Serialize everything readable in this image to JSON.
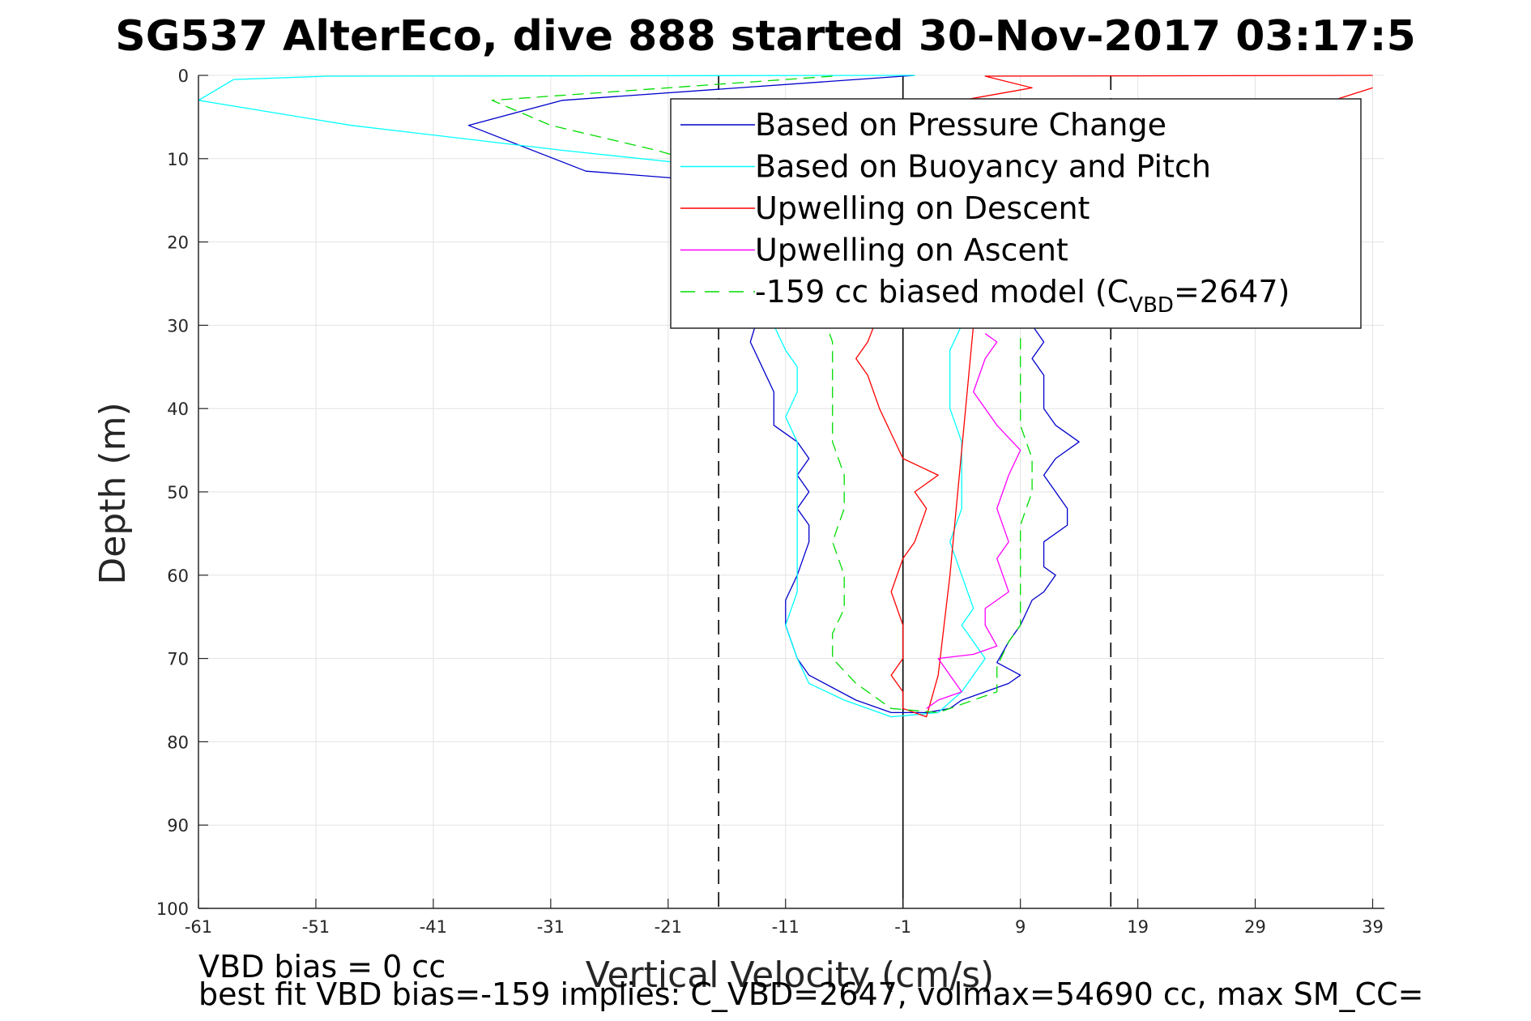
{
  "chart_data": {
    "type": "line",
    "title": "SG537 AlterEco, dive 888 started 30-Nov-2017 03:17:5",
    "xlabel": "Vertical Velocity (cm/s)",
    "ylabel": "Depth (m)",
    "xlim": [
      -61,
      40
    ],
    "ylim": [
      0,
      100
    ],
    "y_reversed": true,
    "grid": true,
    "xticks": [
      -61,
      -51,
      -41,
      -31,
      -21,
      -11,
      -1,
      9,
      19,
      29,
      39
    ],
    "yticks": [
      0,
      10,
      20,
      30,
      40,
      50,
      60,
      70,
      80,
      90,
      100
    ],
    "legend_position": "top-right",
    "legend": [
      {
        "label": "Based on Pressure Change",
        "color": "#0000cc",
        "dash": "solid"
      },
      {
        "label": "Based on Buoyancy and Pitch",
        "color": "#00ffff",
        "dash": "solid"
      },
      {
        "label": "Upwelling on Descent",
        "color": "#ff0000",
        "dash": "solid"
      },
      {
        "label": "Upwelling on Ascent",
        "color": "#ff00ff",
        "dash": "solid"
      },
      {
        "label_main": "-159 cc biased model (C",
        "label_sub": "VBD",
        "label_end": "=2647)",
        "color": "#00dd00",
        "dash": "dashed"
      }
    ],
    "reference_lines": [
      {
        "x": -16.7,
        "style": "dashed",
        "color": "#000000"
      },
      {
        "x": -1,
        "style": "solid",
        "color": "#000000"
      },
      {
        "x": 16.7,
        "style": "dashed",
        "color": "#000000"
      }
    ],
    "series": [
      {
        "color": "#0000cc",
        "dash": "solid",
        "points": [
          [
            0,
            0
          ],
          [
            -30,
            3
          ],
          [
            -38,
            6
          ],
          [
            -28,
            11.5
          ],
          [
            -19,
            12.5
          ],
          [
            -10,
            13.5
          ],
          [
            -14,
            32
          ],
          [
            -13,
            35
          ],
          [
            -12,
            38
          ],
          [
            -12,
            42
          ],
          [
            -10,
            44
          ],
          [
            -9,
            46
          ],
          [
            -10,
            48
          ],
          [
            -9,
            50
          ],
          [
            -10,
            52
          ],
          [
            -9,
            54
          ],
          [
            -9,
            56
          ],
          [
            -10,
            60
          ],
          [
            -11,
            63
          ],
          [
            -11,
            66
          ],
          [
            -10,
            70
          ],
          [
            -9,
            72
          ],
          [
            -5,
            75
          ],
          [
            -2,
            76.5
          ],
          [
            1,
            76.5
          ],
          [
            3,
            76
          ],
          [
            4,
            75
          ],
          [
            6,
            74
          ],
          [
            8,
            73
          ],
          [
            9,
            72
          ],
          [
            7,
            70.5
          ],
          [
            8,
            68
          ],
          [
            9,
            66
          ],
          [
            10,
            63
          ],
          [
            11,
            62
          ],
          [
            12,
            60
          ],
          [
            11,
            59
          ],
          [
            11,
            56
          ],
          [
            13,
            54
          ],
          [
            13,
            52
          ],
          [
            12,
            50
          ],
          [
            11,
            48
          ],
          [
            12,
            46
          ],
          [
            14,
            44
          ],
          [
            12,
            42
          ],
          [
            11,
            40
          ],
          [
            11,
            36
          ],
          [
            10,
            34
          ],
          [
            11,
            32
          ],
          [
            10,
            30
          ]
        ]
      },
      {
        "color": "#00ffff",
        "dash": "solid",
        "points": [
          [
            0,
            0
          ],
          [
            -50,
            0.1
          ],
          [
            -58,
            0.5
          ],
          [
            -61,
            3
          ],
          [
            -48,
            6
          ],
          [
            -30,
            9
          ],
          [
            -20,
            10.5
          ],
          [
            -12,
            11.5
          ],
          [
            -12,
            30
          ],
          [
            -11,
            33
          ],
          [
            -10,
            35
          ],
          [
            -10,
            38
          ],
          [
            -11,
            41
          ],
          [
            -10,
            44
          ],
          [
            -10,
            46
          ],
          [
            -10,
            50
          ],
          [
            -10,
            54
          ],
          [
            -10,
            58
          ],
          [
            -10,
            62
          ],
          [
            -11,
            66
          ],
          [
            -10,
            70
          ],
          [
            -9,
            73
          ],
          [
            -6,
            75
          ],
          [
            -2,
            77
          ],
          [
            2,
            76.5
          ],
          [
            4,
            74
          ],
          [
            5,
            72
          ],
          [
            6,
            70
          ],
          [
            5,
            68
          ],
          [
            4,
            66
          ],
          [
            5,
            64
          ],
          [
            4,
            60
          ],
          [
            3,
            56
          ],
          [
            4,
            52
          ],
          [
            4,
            48
          ],
          [
            4,
            44
          ],
          [
            3,
            40
          ],
          [
            3,
            36
          ],
          [
            3,
            33
          ],
          [
            4,
            30
          ]
        ]
      },
      {
        "color": "#ff0000",
        "dash": "solid",
        "points": [
          [
            39,
            0
          ],
          [
            6,
            0.1
          ],
          [
            10,
            1.5
          ],
          [
            4,
            3
          ],
          [
            -4,
            32
          ],
          [
            -5,
            34
          ],
          [
            -4,
            36
          ],
          [
            -3,
            40
          ],
          [
            -2,
            43
          ],
          [
            -1,
            46
          ],
          [
            2,
            48
          ],
          [
            0,
            50
          ],
          [
            1,
            52
          ],
          [
            0,
            56
          ],
          [
            -1,
            58
          ],
          [
            -2,
            62
          ],
          [
            -1,
            66
          ],
          [
            -1,
            68
          ],
          [
            -1,
            70
          ],
          [
            -2,
            72
          ],
          [
            -1,
            74
          ],
          [
            -1,
            76
          ],
          [
            1,
            77
          ],
          [
            2,
            72
          ],
          [
            3,
            60
          ],
          [
            4,
            45
          ],
          [
            5,
            30
          ],
          [
            4,
            20
          ],
          [
            20,
            10
          ],
          [
            39,
            1.5
          ]
        ]
      },
      {
        "color": "#ff00ff",
        "dash": "solid",
        "points": [
          [
            1,
            76
          ],
          [
            2,
            75
          ],
          [
            4,
            74
          ],
          [
            3,
            72
          ],
          [
            2,
            70
          ],
          [
            5,
            69.5
          ],
          [
            7,
            68.5
          ],
          [
            6,
            66
          ],
          [
            6,
            64
          ],
          [
            8,
            62
          ],
          [
            7,
            58
          ],
          [
            8,
            56
          ],
          [
            7,
            52
          ],
          [
            8,
            48
          ],
          [
            9,
            45
          ],
          [
            7,
            42
          ],
          [
            6,
            40
          ],
          [
            5,
            38
          ],
          [
            6,
            34
          ],
          [
            7,
            32
          ],
          [
            6,
            31
          ]
        ]
      },
      {
        "color": "#00dd00",
        "dash": "dashed",
        "points": [
          [
            -7,
            0.1
          ],
          [
            -36,
            3
          ],
          [
            -31,
            6
          ],
          [
            -22,
            9
          ],
          [
            -17,
            11
          ],
          [
            -12,
            12
          ],
          [
            -7,
            32
          ],
          [
            -7,
            36
          ],
          [
            -7,
            40
          ],
          [
            -7,
            44
          ],
          [
            -6,
            48
          ],
          [
            -6,
            52
          ],
          [
            -7,
            56
          ],
          [
            -6,
            60
          ],
          [
            -6,
            64
          ],
          [
            -7,
            67
          ],
          [
            -7,
            70
          ],
          [
            -5,
            73
          ],
          [
            -2,
            76
          ],
          [
            2,
            76.5
          ],
          [
            5,
            75
          ],
          [
            7,
            74
          ],
          [
            7,
            71
          ],
          [
            8,
            68
          ],
          [
            9,
            66
          ],
          [
            9,
            62
          ],
          [
            9,
            58
          ],
          [
            9,
            54
          ],
          [
            10,
            50
          ],
          [
            10,
            46
          ],
          [
            9,
            42
          ],
          [
            9,
            38
          ],
          [
            9,
            34
          ],
          [
            9,
            31
          ]
        ]
      }
    ]
  },
  "footer": {
    "line1": "VBD bias = 0 cc",
    "line2": "best fit VBD bias=-159 implies: C_VBD=2647, volmax=54690 cc, max SM_CC="
  }
}
